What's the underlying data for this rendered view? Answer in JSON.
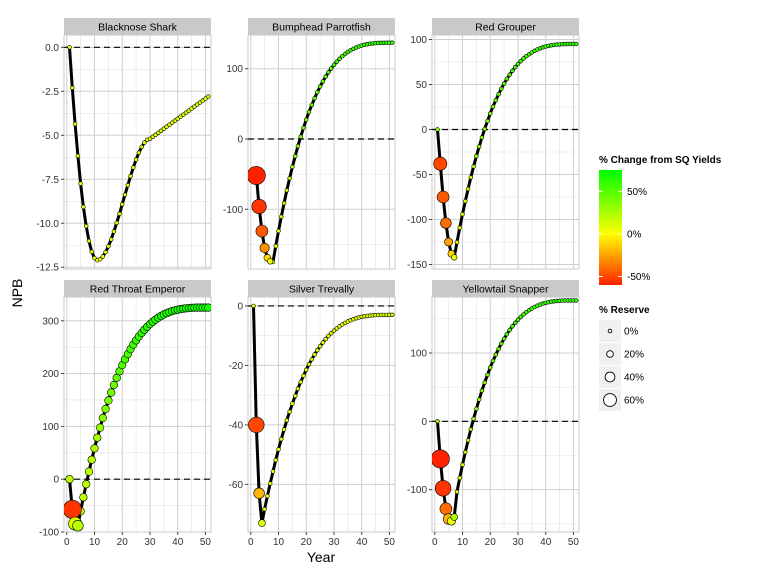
{
  "chart_data": {
    "type": "line",
    "xlabel": "Year",
    "ylabel": "NPB",
    "x_ticks": [
      0,
      10,
      20,
      30,
      40,
      50
    ],
    "xlim": [
      -1,
      52
    ],
    "grid": true,
    "reference_line": {
      "y": 0,
      "style": "dashed"
    },
    "panels": [
      {
        "title": "Blacknose Shark",
        "ylim": [
          -12.6,
          0.7
        ],
        "y_ticks": [
          "0.0",
          "-2.5",
          "-5.0",
          "-7.5",
          "-10.0",
          "-12.5"
        ],
        "curve": {
          "x0": 1,
          "min_year": 11,
          "min_value": -12.1,
          "recovery_year": null,
          "end_value": -2.8
        },
        "large_points": []
      },
      {
        "title": "Bumphead Parrotfish",
        "ylim": [
          -185,
          148
        ],
        "y_ticks": [
          "100",
          "0",
          "-100"
        ],
        "curve": {
          "x0": 2,
          "min_year": 8,
          "min_value": -175,
          "recovery_year": 17,
          "end_value": 137
        },
        "large_points": [
          {
            "year": 2,
            "value": -52,
            "change": -0.6,
            "reserve": 0.6
          },
          {
            "year": 3,
            "value": -96,
            "change": -0.55,
            "reserve": 0.45
          },
          {
            "year": 4,
            "value": -131,
            "change": -0.45,
            "reserve": 0.35
          },
          {
            "year": 5,
            "value": -155,
            "change": -0.3,
            "reserve": 0.25
          },
          {
            "year": 6,
            "value": -169,
            "change": -0.1,
            "reserve": 0.15
          },
          {
            "year": 7,
            "value": -174,
            "change": 0.05,
            "reserve": 0.1
          }
        ]
      },
      {
        "title": "Red Grouper",
        "ylim": [
          -155,
          105
        ],
        "y_ticks": [
          "100",
          "50",
          "0",
          "-50",
          "-100",
          "-150"
        ],
        "curve": {
          "x0": 1,
          "min_year": 7,
          "min_value": -142,
          "recovery_year": 16,
          "end_value": 95
        },
        "large_points": [
          {
            "year": 2,
            "value": -38,
            "change": -0.5,
            "reserve": 0.4
          },
          {
            "year": 3,
            "value": -75,
            "change": -0.45,
            "reserve": 0.35
          },
          {
            "year": 4,
            "value": -104,
            "change": -0.4,
            "reserve": 0.3
          },
          {
            "year": 5,
            "value": -125,
            "change": -0.25,
            "reserve": 0.2
          },
          {
            "year": 6,
            "value": -138,
            "change": -0.1,
            "reserve": 0.15
          },
          {
            "year": 7,
            "value": -142,
            "change": 0.05,
            "reserve": 0.1
          }
        ]
      },
      {
        "title": "Red Throat Emperor",
        "ylim": [
          -100,
          345
        ],
        "y_ticks": [
          "300",
          "200",
          "100",
          "0",
          "-100"
        ],
        "curve": {
          "x0": 1,
          "min_year": 4,
          "min_value": -88,
          "recovery_year": 6,
          "end_value": 325
        },
        "large_points": [
          {
            "year": 2,
            "value": -57,
            "change": -0.55,
            "reserve": 0.6
          },
          {
            "year": 3,
            "value": -84,
            "change": 0.1,
            "reserve": 0.4
          },
          {
            "year": 4,
            "value": -88,
            "change": 0.2,
            "reserve": 0.3
          }
        ]
      },
      {
        "title": "Silver Trevally",
        "ylim": [
          -76,
          3
        ],
        "y_ticks": [
          "0",
          "-20",
          "-40",
          "-60"
        ],
        "curve": {
          "x0": 1,
          "min_year": 4,
          "min_value": -73,
          "recovery_year": null,
          "end_value": -3
        },
        "large_points": [
          {
            "year": 2,
            "value": -40,
            "change": -0.5,
            "reserve": 0.5
          },
          {
            "year": 3,
            "value": -63,
            "change": -0.2,
            "reserve": 0.3
          },
          {
            "year": 4,
            "value": -73,
            "change": 0.1,
            "reserve": 0.15
          }
        ]
      },
      {
        "title": "Yellowtail Snapper",
        "ylim": [
          -162,
          182
        ],
        "y_ticks": [
          "100",
          "0",
          "-100"
        ],
        "curve": {
          "x0": 1,
          "min_year": 6,
          "min_value": -147,
          "recovery_year": 15,
          "end_value": 177
        },
        "large_points": [
          {
            "year": 2,
            "value": -55,
            "change": -0.6,
            "reserve": 0.6
          },
          {
            "year": 3,
            "value": -98,
            "change": -0.55,
            "reserve": 0.5
          },
          {
            "year": 4,
            "value": -128,
            "change": -0.4,
            "reserve": 0.35
          },
          {
            "year": 5,
            "value": -143,
            "change": -0.2,
            "reserve": 0.3
          },
          {
            "year": 6,
            "value": -146,
            "change": 0.05,
            "reserve": 0.2
          },
          {
            "year": 7,
            "value": -140,
            "change": 0.25,
            "reserve": 0.15
          }
        ]
      }
    ],
    "legend": {
      "placement": "right",
      "color_title": "% Change from SQ Yields",
      "color_labels": [
        {
          "label": "50%",
          "value": 0.5
        },
        {
          "label": "0%",
          "value": 0
        },
        {
          "label": "-50%",
          "value": -0.5
        }
      ],
      "color_range": [
        -0.6,
        0.75
      ],
      "colors": {
        "low": "#ff2200",
        "mid": "#ffff00",
        "high": "#00ff00"
      },
      "size_title": "% Reserve",
      "size_labels": [
        {
          "label": "0%",
          "value": 0
        },
        {
          "label": "20%",
          "value": 0.2
        },
        {
          "label": "40%",
          "value": 0.4
        },
        {
          "label": "60%",
          "value": 0.6
        }
      ]
    }
  }
}
